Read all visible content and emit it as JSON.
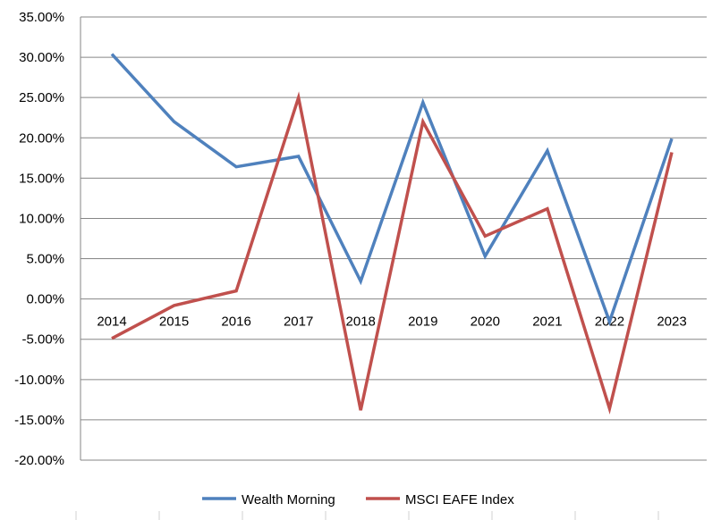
{
  "chart_data": {
    "type": "line",
    "categories": [
      "2014",
      "2015",
      "2016",
      "2017",
      "2018",
      "2019",
      "2020",
      "2021",
      "2022",
      "2023"
    ],
    "series": [
      {
        "name": "Wealth Morning",
        "color": "#4F81BD",
        "values": [
          30.4,
          22.0,
          16.4,
          17.7,
          2.2,
          24.4,
          5.3,
          18.4,
          -2.8,
          19.9
        ]
      },
      {
        "name": "MSCI EAFE Index",
        "color": "#C0504D",
        "values": [
          -4.9,
          -0.8,
          1.0,
          25.0,
          -13.8,
          22.0,
          7.8,
          11.2,
          -13.6,
          18.2
        ]
      }
    ],
    "ylim": [
      -20,
      35
    ],
    "ytick_step": 5,
    "ytick_labels": [
      "35.00%",
      "30.00%",
      "25.00%",
      "20.00%",
      "15.00%",
      "10.00%",
      "5.00%",
      "0.00%",
      "-5.00%",
      "-10.00%",
      "-15.00%",
      "-20.00%"
    ],
    "grid": true,
    "legend_position": "bottom"
  }
}
